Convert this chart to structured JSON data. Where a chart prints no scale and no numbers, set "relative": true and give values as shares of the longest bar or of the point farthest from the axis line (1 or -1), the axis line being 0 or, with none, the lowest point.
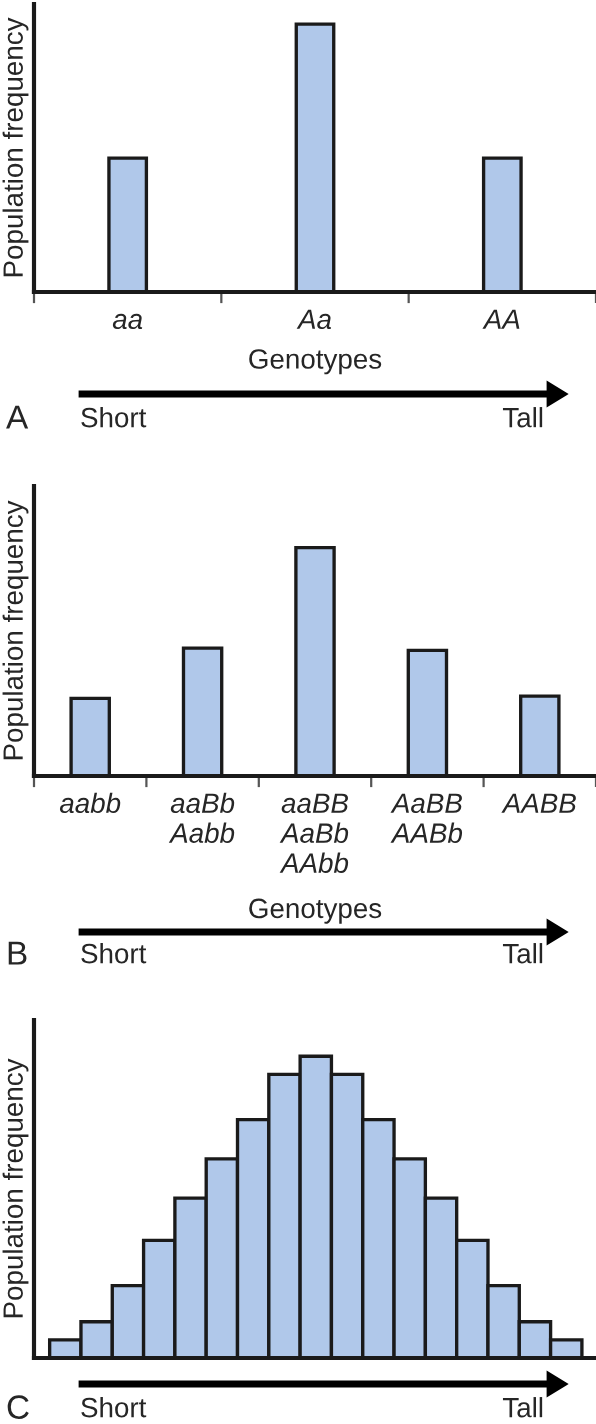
{
  "chart_data": [
    {
      "type": "bar",
      "relative": true,
      "categories": [
        "aa",
        "Aa",
        "AA"
      ],
      "values": [
        0.5,
        1,
        0.5
      ],
      "color": "#b0c8ea",
      "ylabel": "Population frequency",
      "xlabel": "Genotypes",
      "annotations": [
        "A",
        "Short",
        "Tall"
      ],
      "grid": false,
      "legend": false
    },
    {
      "type": "bar",
      "relative": true,
      "categories": [
        "aabb",
        "aaBb\nAabb",
        "aaBB\nAaBb\nAAbb",
        "AaBB\nAABb",
        "AABB"
      ],
      "values": [
        0.34,
        0.56,
        1,
        0.55,
        0.35
      ],
      "color": "#b0c8ea",
      "ylabel": "Population frequency",
      "xlabel": "Genotypes",
      "annotations": [
        "B",
        "Short",
        "Tall"
      ],
      "grid": false,
      "legend": false
    },
    {
      "type": "bar",
      "relative": true,
      "categories": [
        null,
        null,
        null,
        null,
        null,
        null,
        null,
        null,
        null,
        null,
        null,
        null,
        null,
        null,
        null,
        null,
        null
      ],
      "values": [
        0.06,
        0.12,
        0.24,
        0.39,
        0.53,
        0.66,
        0.79,
        0.94,
        1,
        0.94,
        0.79,
        0.66,
        0.53,
        0.39,
        0.24,
        0.12,
        0.06
      ],
      "color": "#b0c8ea",
      "ylabel": "Population frequency",
      "annotations": [
        "C",
        "Short",
        "Tall"
      ],
      "grid": false,
      "legend": false
    }
  ]
}
